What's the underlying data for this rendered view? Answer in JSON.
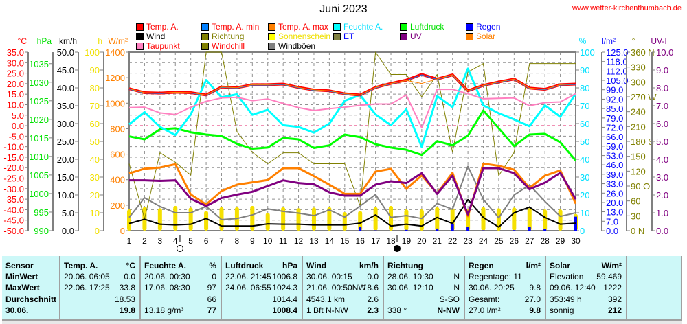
{
  "header": {
    "title": "Juni 2023",
    "site": "www.wetter-kirchenthumbach.de"
  },
  "legend": [
    {
      "label": "Temp. A.",
      "color": "#ff0000",
      "text_color": "#ff0000"
    },
    {
      "label": "Temp. A. min",
      "color": "#0080ff",
      "text_color": "#ff0000"
    },
    {
      "label": "Temp. A. max",
      "color": "#ff8000",
      "text_color": "#ff0000"
    },
    {
      "label": "Feuchte A.",
      "color": "#00ffff",
      "text_color": "#00e0ff"
    },
    {
      "label": "Luftdruck",
      "color": "#00ff00",
      "text_color": "#00e000"
    },
    {
      "label": "Regen",
      "color": "#0000ff",
      "text_color": "#0000ff"
    },
    {
      "label": "Wind",
      "color": "#000000",
      "text_color": "#000000"
    },
    {
      "label": "Richtung",
      "color": "#808000",
      "text_color": "#808000"
    },
    {
      "label": "Sonnenschein",
      "color": "#ffff00",
      "text_color": "#f0e000"
    },
    {
      "label": "ET",
      "color": "#808040",
      "text_color": "#0000ff"
    },
    {
      "label": "UV",
      "color": "#800080",
      "text_color": "#800080"
    },
    {
      "label": "Solar",
      "color": "#ff8000",
      "text_color": "#ff8000"
    },
    {
      "label": "Taupunkt",
      "color": "#ff80c0",
      "text_color": "#ff0000"
    },
    {
      "label": "Windchill",
      "color": "#808000",
      "text_color": "#ff0000"
    },
    {
      "label": "Windböen",
      "color": "#808080",
      "text_color": "#000000"
    }
  ],
  "chart_data": {
    "type": "line",
    "title": "Juni 2023",
    "x": [
      1,
      2,
      3,
      4,
      5,
      6,
      7,
      8,
      9,
      10,
      11,
      12,
      13,
      14,
      15,
      16,
      17,
      18,
      19,
      20,
      21,
      22,
      23,
      24,
      25,
      26,
      27,
      28,
      29,
      30
    ],
    "x_tick_labels": [
      "1",
      "2",
      "3",
      "4",
      "5",
      "6",
      "7",
      "8",
      "9",
      "10",
      "11",
      "12",
      "13",
      "14",
      "15",
      "16",
      "17",
      "18",
      "19",
      "20",
      "21",
      "22",
      "23",
      "24",
      "25",
      "26",
      "27",
      "28",
      "29",
      "30"
    ],
    "grid": true,
    "moon_phases": [
      {
        "day": 4.3,
        "phase": "full"
      },
      {
        "day": 18.4,
        "phase": "new"
      }
    ],
    "axes": {
      "temp": {
        "unit": "°C",
        "min": -50,
        "max": 35,
        "color": "#ff0000",
        "ticks": [
          "35.0",
          "30.0",
          "25.0",
          "20.0",
          "15.0",
          "10.0",
          "5.0",
          "0.0",
          "-5.0",
          "-10.0",
          "-15.0",
          "-20.0",
          "-25.0",
          "-30.0",
          "-35.0",
          "-40.0",
          "-45.0",
          "-50.0"
        ],
        "tick_values": [
          35,
          30,
          25,
          20,
          15,
          10,
          5,
          0,
          -5,
          -10,
          -15,
          -20,
          -25,
          -30,
          -35,
          -40,
          -45,
          -50
        ]
      },
      "pressure": {
        "unit": "hPa",
        "min": 990,
        "max": 1038.1,
        "color": "#00e000",
        "ticks": [
          "1035",
          "1030",
          "1025",
          "1020",
          "1015",
          "1010",
          "1005",
          "1000",
          "995",
          "990"
        ],
        "tick_values": [
          1035,
          1030,
          1025,
          1020,
          1015,
          1010,
          1005,
          1000,
          995,
          990
        ]
      },
      "wind": {
        "unit": "km/h",
        "min": 0,
        "max": 50,
        "color": "#000000",
        "ticks": [
          "50.0",
          "45.0",
          "40.0",
          "35.0",
          "30.0",
          "25.0",
          "20.0",
          "15.0",
          "10.0",
          "5.0",
          "0.0"
        ],
        "tick_values": [
          50,
          45,
          40,
          35,
          30,
          25,
          20,
          15,
          10,
          5,
          0
        ]
      },
      "sun": {
        "unit": "h",
        "min": 0,
        "max": 100,
        "color": "#f0e000",
        "ticks": [
          "100",
          "90",
          "80",
          "70",
          "60",
          "50",
          "40",
          "30",
          "20",
          "10",
          "0"
        ],
        "tick_values": [
          100,
          90,
          80,
          70,
          60,
          50,
          40,
          30,
          20,
          10,
          0
        ]
      },
      "solar": {
        "unit": "W/m²",
        "min": 0,
        "max": 1400,
        "color": "#ff8000",
        "ticks": [
          "1400",
          "1200",
          "1000",
          "800",
          "600",
          "400",
          "200",
          "0"
        ],
        "tick_values": [
          1400,
          1200,
          1000,
          800,
          600,
          400,
          200,
          0
        ]
      },
      "humidity": {
        "unit": "%",
        "min": 0,
        "max": 100,
        "color": "#00e0ff",
        "ticks": [
          "100",
          "90",
          "80",
          "70",
          "60",
          "50",
          "40",
          "30",
          "20",
          "10",
          "0"
        ],
        "tick_values": [
          100,
          90,
          80,
          70,
          60,
          50,
          40,
          30,
          20,
          10,
          0
        ]
      },
      "rain": {
        "unit": "l/m²",
        "min": 0,
        "max": 125,
        "color": "#0000ff",
        "ticks": [
          "125.0",
          "118.0",
          "112.0",
          "105.0",
          "99.0",
          "92.0",
          "85.0",
          "79.0",
          "72.0",
          "66.0",
          "59.0",
          "53.0",
          "46.0",
          "39.0",
          "33.0",
          "26.0",
          "20.0",
          "13.0",
          "7.0",
          "0.0"
        ],
        "tick_values": [
          125,
          118.4,
          111.8,
          105.3,
          98.7,
          92.1,
          85.5,
          78.9,
          72.4,
          65.8,
          59.2,
          52.6,
          46.1,
          39.5,
          32.9,
          26.3,
          19.7,
          13.2,
          6.6,
          0
        ]
      },
      "direction": {
        "unit": "°",
        "min": 0,
        "max": 360,
        "color": "#808000",
        "ticks": [
          "360 N",
          "330",
          "300",
          "270 W",
          "240",
          "210",
          "180 S",
          "150",
          "120",
          "90  O",
          "60",
          "30",
          "0   N"
        ],
        "tick_values": [
          360,
          330,
          300,
          270,
          240,
          210,
          180,
          150,
          120,
          90,
          60,
          30,
          0
        ]
      },
      "uv": {
        "unit": "UV-I",
        "min": 0,
        "max": 10,
        "color": "#800080",
        "ticks": [
          "10.0",
          "9.0",
          "8.0",
          "7.0",
          "6.0",
          "5.0",
          "4.0",
          "3.0",
          "2.0",
          "1.0",
          "0.0"
        ],
        "tick_values": [
          10,
          9,
          8,
          7,
          6,
          5,
          4,
          3,
          2,
          1,
          0
        ]
      }
    },
    "series": [
      {
        "name": "Sonnenschein",
        "axis": "sun",
        "kind": "bar",
        "color": "#f5e000",
        "values": [
          11.9,
          13.2,
          12.6,
          13.9,
          13.0,
          11.0,
          13.2,
          13.2,
          13.9,
          10.0,
          13.2,
          12.6,
          13.0,
          13.2,
          10.4,
          11.0,
          13.2,
          13.9,
          11.9,
          11.9,
          13.2,
          12.6,
          11.9,
          13.2,
          12.6,
          13.0,
          12.6,
          11.9,
          11.9,
          9.4
        ]
      },
      {
        "name": "Regen",
        "axis": "rain",
        "kind": "bar",
        "color": "#0000ff",
        "values": [
          0,
          0,
          0,
          0,
          0,
          0,
          0,
          0,
          0,
          0,
          0,
          0,
          0,
          0,
          0,
          2.6,
          0.3,
          0,
          0.6,
          0,
          1.5,
          4.9,
          2.4,
          0.3,
          0,
          0.4,
          2.8,
          1.4,
          0,
          9.8
        ]
      },
      {
        "name": "Richtung",
        "axis": "direction",
        "kind": "line",
        "width": 1,
        "color": "#808000",
        "values": [
          135,
          24,
          157,
          138,
          112,
          360,
          360,
          200,
          158,
          135,
          157,
          157,
          135,
          135,
          135,
          50,
          360,
          315,
          315,
          270,
          315,
          158,
          320,
          337,
          111,
          158,
          337,
          337,
          337,
          337
        ]
      },
      {
        "name": "Windböen",
        "axis": "wind",
        "kind": "line",
        "width": 2,
        "color": "#808080",
        "values": [
          3.7,
          9.2,
          6.8,
          5.0,
          5.0,
          6.8,
          3.1,
          3.4,
          4.4,
          6.1,
          5.4,
          4.9,
          4.2,
          5.8,
          3.8,
          6.9,
          10.1,
          3.7,
          4.2,
          3.4,
          7.6,
          6.0,
          18.0,
          8.8,
          3.6,
          10.0,
          12.8,
          8.2,
          4.0,
          5.0
        ]
      },
      {
        "name": "Wind",
        "axis": "wind",
        "kind": "line",
        "width": 2,
        "color": "#000000",
        "values": [
          2.0,
          3.2,
          1.8,
          1.6,
          1.8,
          3.4,
          1.3,
          1.3,
          1.3,
          1.9,
          1.8,
          1.8,
          1.6,
          1.6,
          1.6,
          2.1,
          4.4,
          1.3,
          1.8,
          1.3,
          3.7,
          2.0,
          8.7,
          3.7,
          1.0,
          5.0,
          6.6,
          3.7,
          1.8,
          2.1
        ]
      },
      {
        "name": "Solar",
        "axis": "solar",
        "kind": "line",
        "width": 3,
        "color": "#ff8000",
        "values": [
          449,
          486,
          495,
          521,
          284,
          206,
          311,
          361,
          379,
          397,
          490,
          490,
          427,
          361,
          289,
          289,
          463,
          485,
          328,
          433,
          292,
          454,
          113,
          526,
          508,
          478,
          334,
          431,
          472,
          212
        ]
      },
      {
        "name": "UV",
        "axis": "uv",
        "kind": "line",
        "width": 3,
        "color": "#800080",
        "values": [
          2.82,
          2.82,
          2.79,
          2.82,
          1.79,
          1.38,
          1.83,
          2.02,
          2.18,
          2.5,
          2.82,
          2.67,
          2.6,
          2.15,
          1.96,
          1.96,
          2.58,
          2.77,
          2.67,
          3.22,
          2.06,
          3.08,
          0.91,
          3.5,
          3.5,
          3.22,
          2.32,
          2.69,
          3.24,
          1.77
        ]
      },
      {
        "name": "Luftdruck",
        "axis": "pressure",
        "kind": "line",
        "width": 3,
        "color": "#00ff00",
        "values": [
          1015.4,
          1014.6,
          1017.3,
          1017.6,
          1016.5,
          1015.9,
          1015.5,
          1013.4,
          1012.1,
          1012.4,
          1015.0,
          1014.6,
          1012.3,
          1013.0,
          1015.9,
          1015.2,
          1013.3,
          1012.4,
          1011.8,
          1010.4,
          1014.1,
          1013.0,
          1015.6,
          1022.4,
          1017.6,
          1012.8,
          1015.9,
          1016.1,
          1013.8,
          1008.9
        ]
      },
      {
        "name": "Feuchte A.",
        "axis": "humidity",
        "kind": "line",
        "width": 3,
        "color": "#00ffff",
        "values": [
          59.6,
          66.4,
          58.1,
          53.6,
          65.1,
          84.4,
          74.7,
          76.4,
          64.9,
          67.7,
          59.1,
          58.1,
          54.9,
          60.0,
          72.8,
          76.0,
          65.1,
          59.1,
          68.0,
          46.9,
          75.4,
          69.2,
          90.8,
          70.2,
          65.8,
          62.3,
          58.5,
          70.2,
          63.8,
          76.7
        ]
      },
      {
        "name": "Taupunkt",
        "axis": "temp",
        "kind": "line",
        "width": 2,
        "color": "#ff80c0",
        "values": [
          8.6,
          8.8,
          6.1,
          5.3,
          8.8,
          11.6,
          13.2,
          13.5,
          11.9,
          12.7,
          10.6,
          8.6,
          7.2,
          8.1,
          8.8,
          9.7,
          10.3,
          10.3,
          14.6,
          -1.0,
          17.3,
          17.3,
          15.2,
          12.8,
          13.0,
          13.2,
          9.5,
          11.0,
          11.3,
          15.2
        ]
      },
      {
        "name": "Temp. A.",
        "axis": "temp",
        "kind": "line",
        "width": 4,
        "color": "#ff0000",
        "values": [
          17.6,
          15.7,
          15.5,
          15.9,
          15.7,
          14.6,
          18.4,
          18.1,
          19.5,
          19.5,
          19.8,
          18.2,
          17.0,
          16.6,
          15.2,
          14.6,
          18.2,
          20.1,
          21.7,
          24.4,
          22.2,
          24.2,
          16.6,
          19.2,
          20.8,
          22.2,
          17.9,
          17.3,
          19.5,
          19.8
        ]
      },
      {
        "name": "Temp. A. min",
        "axis": "temp",
        "kind": "line",
        "width": 1,
        "color": "#0080ff",
        "values": [
          17.4,
          15.5,
          15.3,
          15.7,
          15.5,
          14.4,
          18.2,
          17.9,
          19.3,
          19.3,
          19.6,
          18.0,
          16.8,
          16.4,
          15.0,
          14.4,
          18.0,
          19.9,
          21.5,
          24.2,
          22.0,
          24.0,
          16.4,
          19.0,
          20.6,
          22.0,
          17.7,
          17.1,
          19.3,
          19.6
        ]
      },
      {
        "name": "Temp. A. max",
        "axis": "temp",
        "kind": "line",
        "width": 1,
        "color": "#ff8000",
        "values": [
          17.6,
          15.7,
          15.5,
          15.9,
          15.7,
          14.6,
          18.4,
          18.1,
          19.5,
          19.5,
          19.8,
          18.2,
          17.0,
          16.6,
          15.2,
          14.6,
          18.2,
          20.1,
          21.5,
          20.1,
          22.2,
          24.2,
          16.6,
          19.2,
          20.8,
          22.2,
          17.9,
          17.3,
          19.5,
          19.8
        ]
      }
    ]
  },
  "table": [
    {
      "header": "Sensor",
      "unit": "",
      "rows": [
        [
          "MinWert",
          ""
        ],
        [
          "MaxWert",
          ""
        ],
        [
          "Durchschnitt",
          ""
        ],
        [
          "30.06.",
          ""
        ]
      ],
      "label_col": true
    },
    {
      "header": "Temp. A.",
      "unit": "°C",
      "rows": [
        [
          "20.06.  06:05",
          "0.0"
        ],
        [
          "22.06.  17:25",
          "33.8"
        ],
        [
          "",
          "18.53"
        ],
        [
          "",
          "19.8"
        ]
      ]
    },
    {
      "header": "Feuchte A.",
      "unit": "%",
      "rows": [
        [
          "20.06.  00:30",
          "0"
        ],
        [
          "17.06.  08:30",
          "97"
        ],
        [
          "",
          "66"
        ],
        [
          "13.18 g/m³",
          "77"
        ]
      ]
    },
    {
      "header": "Luftdruck",
      "unit": "hPa",
      "rows": [
        [
          "22.06.  21:45",
          "1006.8"
        ],
        [
          "24.06.  06:55",
          "1024.3"
        ],
        [
          "",
          "1014.4"
        ],
        [
          "",
          "1008.4"
        ]
      ]
    },
    {
      "header": "Wind",
      "unit": "km/h",
      "rows": [
        [
          "30.06.  00:15",
          "0.0"
        ],
        [
          "21.06.  00:50NW",
          "18.6"
        ],
        [
          "4543.1 km",
          "2.6"
        ],
        [
          "1 Bft N-NW",
          "2.3"
        ]
      ]
    },
    {
      "header": "Richtung",
      "unit": "",
      "rows": [
        [
          "28.06.  10:30",
          "N"
        ],
        [
          "30.06.  12:10",
          "N"
        ],
        [
          "",
          "S-SO"
        ],
        [
          "338 °",
          "N-NW"
        ]
      ]
    },
    {
      "header": "Regen",
      "unit": "l/m²",
      "rows": [
        [
          "Regentage: 11",
          ""
        ],
        [
          "30.06.  20:25",
          "9.8"
        ],
        [
          "Gesamt:",
          "27.0"
        ],
        [
          "27.0 l/m²",
          "9.8"
        ]
      ]
    },
    {
      "header": "Solar",
      "unit": "W/m²",
      "rows": [
        [
          "Elevation",
          "59.469"
        ],
        [
          "09.06.  12:40",
          "1222"
        ],
        [
          "353:49 h",
          "392"
        ],
        [
          "sonnig",
          "212"
        ]
      ]
    }
  ]
}
